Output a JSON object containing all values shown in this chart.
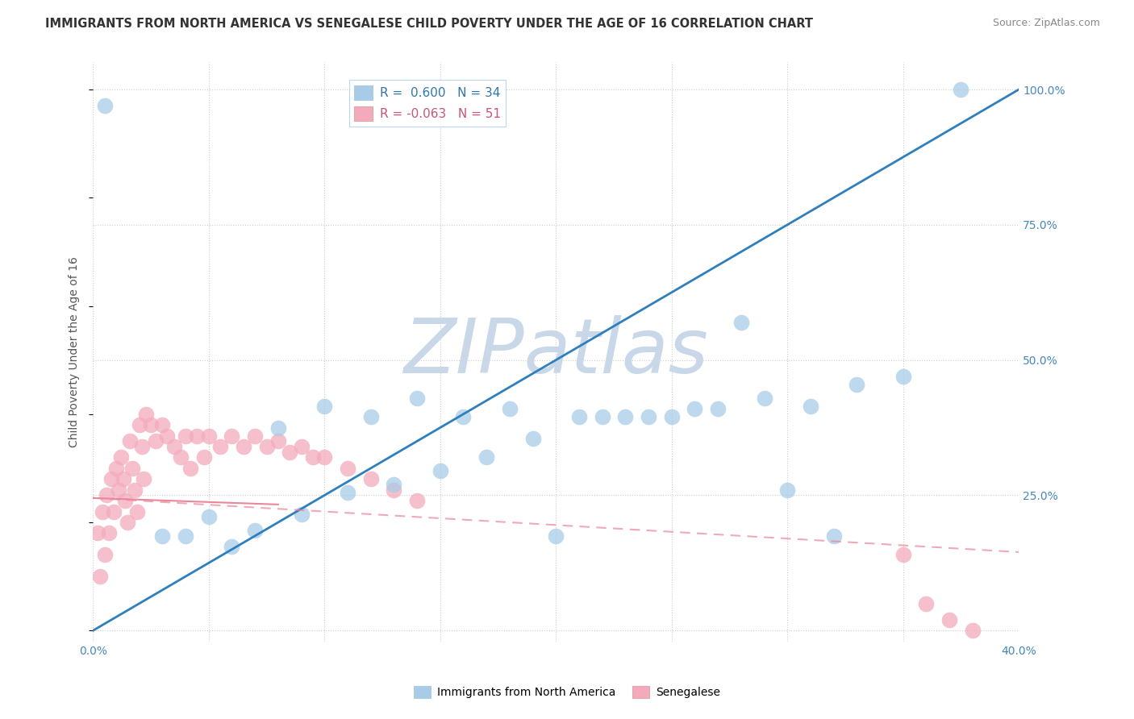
{
  "title": "IMMIGRANTS FROM NORTH AMERICA VS SENEGALESE CHILD POVERTY UNDER THE AGE OF 16 CORRELATION CHART",
  "source": "Source: ZipAtlas.com",
  "ylabel": "Child Poverty Under the Age of 16",
  "xlim": [
    0.0,
    0.4
  ],
  "ylim": [
    -0.02,
    1.05
  ],
  "blue_R": 0.6,
  "blue_N": 34,
  "pink_R": -0.063,
  "pink_N": 51,
  "blue_color": "#A8CCE8",
  "pink_color": "#F4AABC",
  "blue_line_color": "#2E7FBC",
  "pink_line_color": "#E88898",
  "watermark": "ZIPatlas",
  "watermark_color": "#C8D8E8",
  "background_color": "#FFFFFF",
  "grid_color": "#CCCCCC",
  "blue_x": [
    0.005,
    0.375,
    0.08,
    0.1,
    0.12,
    0.14,
    0.16,
    0.18,
    0.05,
    0.07,
    0.09,
    0.11,
    0.13,
    0.15,
    0.17,
    0.19,
    0.21,
    0.23,
    0.25,
    0.27,
    0.29,
    0.31,
    0.33,
    0.35,
    0.22,
    0.24,
    0.26,
    0.28,
    0.3,
    0.2,
    0.06,
    0.04,
    0.03,
    0.32
  ],
  "blue_y": [
    0.97,
    1.0,
    0.375,
    0.415,
    0.395,
    0.43,
    0.395,
    0.41,
    0.21,
    0.185,
    0.215,
    0.255,
    0.27,
    0.295,
    0.32,
    0.355,
    0.395,
    0.395,
    0.395,
    0.41,
    0.43,
    0.415,
    0.455,
    0.47,
    0.395,
    0.395,
    0.41,
    0.57,
    0.26,
    0.175,
    0.155,
    0.175,
    0.175,
    0.175
  ],
  "pink_x": [
    0.002,
    0.003,
    0.004,
    0.005,
    0.006,
    0.007,
    0.008,
    0.009,
    0.01,
    0.011,
    0.012,
    0.013,
    0.014,
    0.015,
    0.016,
    0.017,
    0.018,
    0.019,
    0.02,
    0.021,
    0.022,
    0.023,
    0.025,
    0.027,
    0.03,
    0.032,
    0.035,
    0.038,
    0.04,
    0.042,
    0.045,
    0.048,
    0.05,
    0.055,
    0.06,
    0.065,
    0.07,
    0.075,
    0.08,
    0.085,
    0.09,
    0.095,
    0.1,
    0.11,
    0.12,
    0.13,
    0.14,
    0.35,
    0.36,
    0.37,
    0.38
  ],
  "pink_y": [
    0.18,
    0.1,
    0.22,
    0.14,
    0.25,
    0.18,
    0.28,
    0.22,
    0.3,
    0.26,
    0.32,
    0.28,
    0.24,
    0.2,
    0.35,
    0.3,
    0.26,
    0.22,
    0.38,
    0.34,
    0.28,
    0.4,
    0.38,
    0.35,
    0.38,
    0.36,
    0.34,
    0.32,
    0.36,
    0.3,
    0.36,
    0.32,
    0.36,
    0.34,
    0.36,
    0.34,
    0.36,
    0.34,
    0.35,
    0.33,
    0.34,
    0.32,
    0.32,
    0.3,
    0.28,
    0.26,
    0.24,
    0.14,
    0.05,
    0.02,
    0.0
  ]
}
